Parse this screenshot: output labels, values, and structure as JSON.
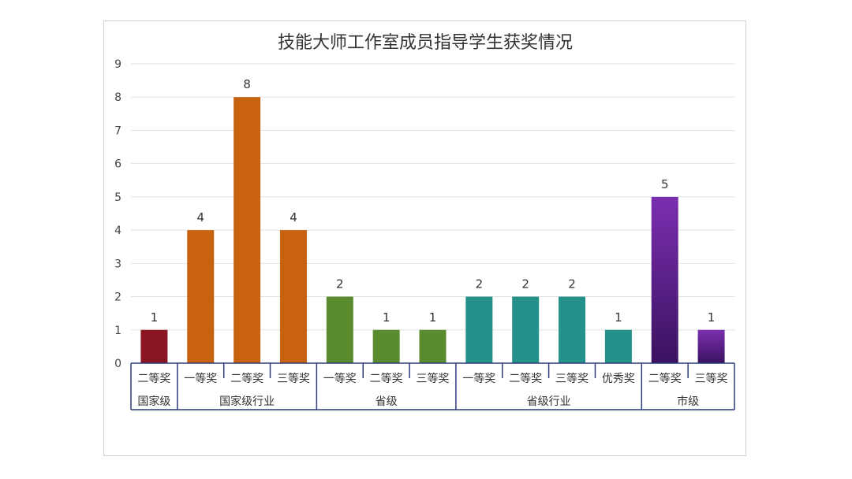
{
  "chart_data": {
    "type": "bar",
    "title": "技能大师工作室成员指导学生获奖情况",
    "ylim": [
      0,
      9
    ],
    "yticks": [
      0,
      1,
      2,
      3,
      4,
      5,
      6,
      7,
      8,
      9
    ],
    "grid": true,
    "groups": [
      {
        "name": "国家级",
        "color": "#8b1623",
        "categories": [
          "二等奖"
        ],
        "values": [
          1
        ]
      },
      {
        "name": "国家级行业",
        "color": "#c8620f",
        "categories": [
          "一等奖",
          "二等奖",
          "三等奖"
        ],
        "values": [
          4,
          8,
          4
        ]
      },
      {
        "name": "省级",
        "color": "#5a8b2f",
        "categories": [
          "一等奖",
          "二等奖",
          "三等奖"
        ],
        "values": [
          2,
          1,
          1
        ]
      },
      {
        "name": "省级行业",
        "color": "#24918a",
        "categories": [
          "一等奖",
          "二等奖",
          "三等奖",
          "优秀奖"
        ],
        "values": [
          2,
          2,
          2,
          1
        ]
      },
      {
        "name": "市级",
        "color": "#7b2fb0",
        "categories": [
          "二等奖",
          "三等奖"
        ],
        "values": [
          5,
          1
        ]
      }
    ]
  }
}
